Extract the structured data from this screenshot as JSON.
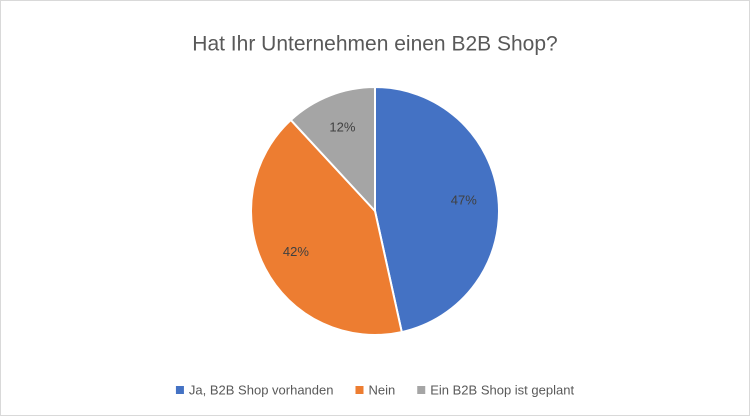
{
  "chart_data": {
    "type": "pie",
    "title": "Hat Ihr Unternehmen einen B2B Shop?",
    "categories": [
      "Ja, B2B Shop vorhanden",
      "Nein",
      "Ein B2B Shop ist geplant"
    ],
    "values": [
      47,
      42,
      12
    ],
    "value_labels": [
      "47%",
      "42%",
      "12%"
    ],
    "colors": [
      "#4472c4",
      "#ed7d31",
      "#a5a5a5"
    ],
    "legend": "bottom"
  }
}
